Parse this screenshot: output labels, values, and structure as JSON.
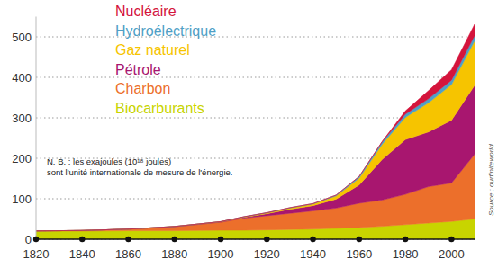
{
  "chart_data": {
    "type": "area",
    "stacked": true,
    "grid": true,
    "legend": "top-left",
    "annotations": [
      "N. B. : les exajoules (10¹⁸ joules)",
      "sont l'unité internationale de mesure de l'énergie."
    ],
    "source": "Source : ourfiniteworld",
    "x": [
      1820,
      1840,
      1860,
      1880,
      1900,
      1910,
      1920,
      1930,
      1940,
      1950,
      1960,
      1970,
      1980,
      1990,
      2000,
      2010
    ],
    "xlim": [
      1820,
      2010
    ],
    "xticks": [
      1820,
      1840,
      1860,
      1880,
      1900,
      1920,
      1940,
      1960,
      1980,
      2000
    ],
    "ylim": [
      0,
      550
    ],
    "yticks": [
      0,
      100,
      200,
      300,
      400,
      500
    ],
    "series": [
      {
        "name": "Biocarburants",
        "color": "#c8d400",
        "values": [
          20,
          20,
          21,
          21,
          22,
          22,
          23,
          24,
          25,
          27,
          29,
          32,
          36,
          40,
          44,
          50
        ]
      },
      {
        "name": "Charbon",
        "color": "#ec6f2b",
        "values": [
          0.5,
          1.5,
          4,
          10,
          20,
          30,
          35,
          40,
          45,
          50,
          60,
          65,
          75,
          90,
          95,
          160
        ]
      },
      {
        "name": "Pétrole",
        "color": "#a8166f",
        "values": [
          0,
          0,
          0,
          0.5,
          1,
          2,
          5,
          10,
          13,
          22,
          45,
          100,
          135,
          135,
          155,
          170
        ]
      },
      {
        "name": "Gaz naturel",
        "color": "#f6c400",
        "values": [
          0,
          0,
          0,
          0,
          0.5,
          1,
          2,
          3,
          4,
          8,
          17,
          38,
          55,
          72,
          88,
          110
        ]
      },
      {
        "name": "Hydroélectrique",
        "color": "#4f9fc6",
        "values": [
          0,
          0,
          0,
          0,
          0,
          0.5,
          0.5,
          1,
          1,
          2,
          4,
          6,
          8,
          10,
          11,
          13
        ]
      },
      {
        "name": "Nucléaire",
        "color": "#d4143c",
        "values": [
          0,
          0,
          0,
          0,
          0,
          0,
          0,
          0,
          0,
          0,
          0,
          1,
          8,
          20,
          26,
          28
        ]
      }
    ]
  }
}
